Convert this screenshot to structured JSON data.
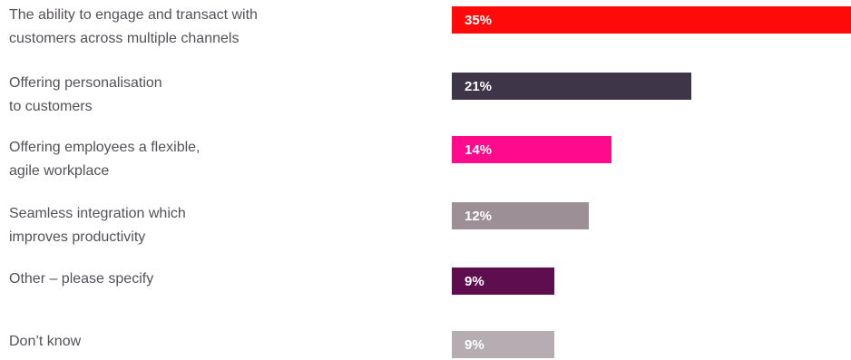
{
  "chart_data": {
    "type": "bar",
    "orientation": "horizontal",
    "categories": [
      "The ability to engage and transact with\ncustomers across multiple channels",
      "Offering personalisation\nto customers",
      "Offering employees a flexible,\nagile workplace",
      "Seamless integration which\nimproves productivity",
      "Other – please specify",
      "Don’t know"
    ],
    "values": [
      35,
      21,
      14,
      12,
      9,
      9
    ],
    "value_labels": [
      "35%",
      "21%",
      "14%",
      "12%",
      "9%",
      "9%"
    ],
    "colors": [
      "#ff0a0a",
      "#3e3548",
      "#ff0a8c",
      "#9c9096",
      "#5e0e4e",
      "#b5adb2"
    ],
    "unit": "%",
    "xlim": [
      0,
      35
    ],
    "title": "",
    "xlabel": "",
    "ylabel": "",
    "grid": false,
    "legend": "none"
  }
}
